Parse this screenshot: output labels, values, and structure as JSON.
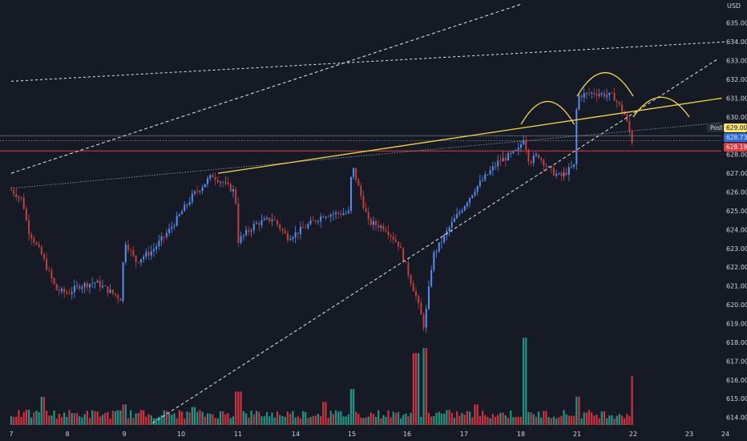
{
  "currency": "USD",
  "price_labels": {
    "post": "Post",
    "post_price": "629.00",
    "last_price": "628.73",
    "red_price": "628.19"
  },
  "colors": {
    "background": "#161a25",
    "up": "#5b8def",
    "down": "#c0413f",
    "volume_up": "#22ab94",
    "volume_down": "#f23645",
    "trendline": "#f5d94a",
    "dashed": "#e6e8ee",
    "red_line": "#e03a3e",
    "last_line": "#9fa6b8",
    "grid": "#1f2432"
  },
  "chart_data": {
    "type": "candlestick",
    "title": "",
    "xlabel": "",
    "ylabel": "",
    "ylim": [
      613.6,
      635.8
    ],
    "y_ticks": [
      "614.00",
      "615.00",
      "616.00",
      "617.00",
      "618.00",
      "619.00",
      "620.00",
      "621.00",
      "622.00",
      "623.00",
      "624.00",
      "625.00",
      "626.00",
      "627.00",
      "628.00",
      "629.00",
      "630.00",
      "631.00",
      "632.00",
      "633.00",
      "634.00",
      "635.00"
    ],
    "x_ticks": [
      "7",
      "8",
      "9",
      "10",
      "11",
      "14",
      "15",
      "16",
      "17",
      "18",
      "21",
      "22",
      "23",
      "24"
    ],
    "grid": false,
    "price_path": [
      {
        "t": 0.0,
        "p": 626.1
      },
      {
        "t": 0.2,
        "p": 625.6
      },
      {
        "t": 0.3,
        "p": 624.0
      },
      {
        "t": 0.55,
        "p": 622.6
      },
      {
        "t": 0.8,
        "p": 620.8
      },
      {
        "t": 1.0,
        "p": 620.6
      },
      {
        "t": 1.2,
        "p": 621.0
      },
      {
        "t": 1.5,
        "p": 621.2
      },
      {
        "t": 1.95,
        "p": 620.3
      },
      {
        "t": 2.0,
        "p": 623.5
      },
      {
        "t": 2.2,
        "p": 622.3
      },
      {
        "t": 2.5,
        "p": 622.9
      },
      {
        "t": 2.8,
        "p": 624.0
      },
      {
        "t": 3.2,
        "p": 625.8
      },
      {
        "t": 3.55,
        "p": 626.9
      },
      {
        "t": 3.95,
        "p": 626.0
      },
      {
        "t": 4.0,
        "p": 623.4
      },
      {
        "t": 4.3,
        "p": 624.3
      },
      {
        "t": 4.6,
        "p": 624.6
      },
      {
        "t": 4.85,
        "p": 623.6
      },
      {
        "t": 5.0,
        "p": 623.8
      },
      {
        "t": 5.5,
        "p": 624.8
      },
      {
        "t": 5.95,
        "p": 624.9
      },
      {
        "t": 6.0,
        "p": 627.5
      },
      {
        "t": 6.3,
        "p": 624.4
      },
      {
        "t": 6.6,
        "p": 624.1
      },
      {
        "t": 6.85,
        "p": 623.2
      },
      {
        "t": 7.15,
        "p": 620.5
      },
      {
        "t": 7.3,
        "p": 618.8
      },
      {
        "t": 7.45,
        "p": 622.6
      },
      {
        "t": 7.8,
        "p": 624.4
      },
      {
        "t": 8.2,
        "p": 626.2
      },
      {
        "t": 8.6,
        "p": 627.6
      },
      {
        "t": 8.95,
        "p": 628.2
      },
      {
        "t": 9.05,
        "p": 628.9
      },
      {
        "t": 9.15,
        "p": 627.6
      },
      {
        "t": 9.3,
        "p": 628.0
      },
      {
        "t": 9.5,
        "p": 627.2
      },
      {
        "t": 9.7,
        "p": 626.8
      },
      {
        "t": 9.95,
        "p": 627.4
      },
      {
        "t": 10.0,
        "p": 631.1
      },
      {
        "t": 10.3,
        "p": 631.3
      },
      {
        "t": 10.65,
        "p": 631.1
      },
      {
        "t": 10.85,
        "p": 630.1
      },
      {
        "t": 11.0,
        "p": 628.5
      }
    ],
    "volumes": [
      {
        "t": 0.55,
        "v": 1.1
      },
      {
        "t": 2.0,
        "v": 0.8
      },
      {
        "t": 3.2,
        "v": 0.7
      },
      {
        "t": 4.0,
        "v": 1.3
      },
      {
        "t": 5.5,
        "v": 0.9
      },
      {
        "t": 6.0,
        "v": 1.4
      },
      {
        "t": 7.15,
        "v": 2.8
      },
      {
        "t": 7.3,
        "v": 3.0
      },
      {
        "t": 8.2,
        "v": 0.8
      },
      {
        "t": 9.05,
        "v": 3.4
      },
      {
        "t": 10.0,
        "v": 1.1
      },
      {
        "t": 11.0,
        "v": 1.9
      }
    ],
    "annotations": [
      "yellow trendline from 10 to right edge",
      "two dashed rising trendlines",
      "dashed flat trendline",
      "dotted trendline",
      "yellow head-and-shoulders arcs",
      "red horizontal level at 628.19"
    ]
  }
}
